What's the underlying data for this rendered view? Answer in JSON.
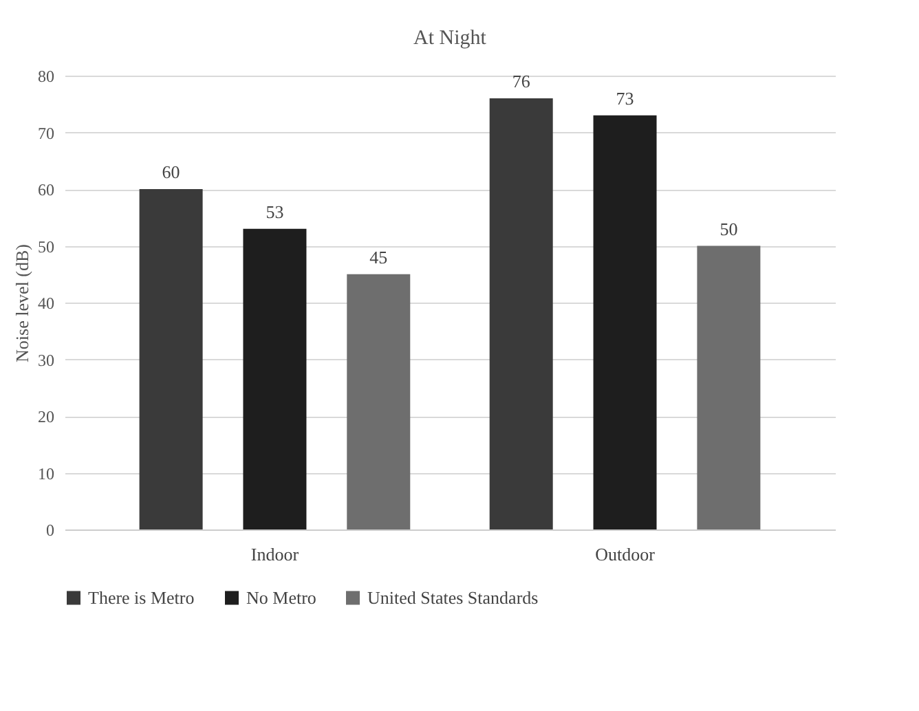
{
  "chart_data": {
    "type": "bar",
    "title": "At Night",
    "ylabel": "Noise level (dB)",
    "categories": [
      "Indoor",
      "Outdoor"
    ],
    "series": [
      {
        "name": "There is Metro",
        "color": "#3a3a3a",
        "values": [
          60,
          76
        ]
      },
      {
        "name": "No Metro",
        "color": "#1e1e1e",
        "values": [
          53,
          73
        ]
      },
      {
        "name": "United States Standards",
        "color": "#6e6e6e",
        "values": [
          45,
          50
        ]
      }
    ],
    "ylim": [
      0,
      80
    ],
    "yticks": [
      0,
      10,
      20,
      30,
      40,
      50,
      60,
      70,
      80
    ],
    "grid": "y",
    "legend": "bottom",
    "data_labels": true
  }
}
